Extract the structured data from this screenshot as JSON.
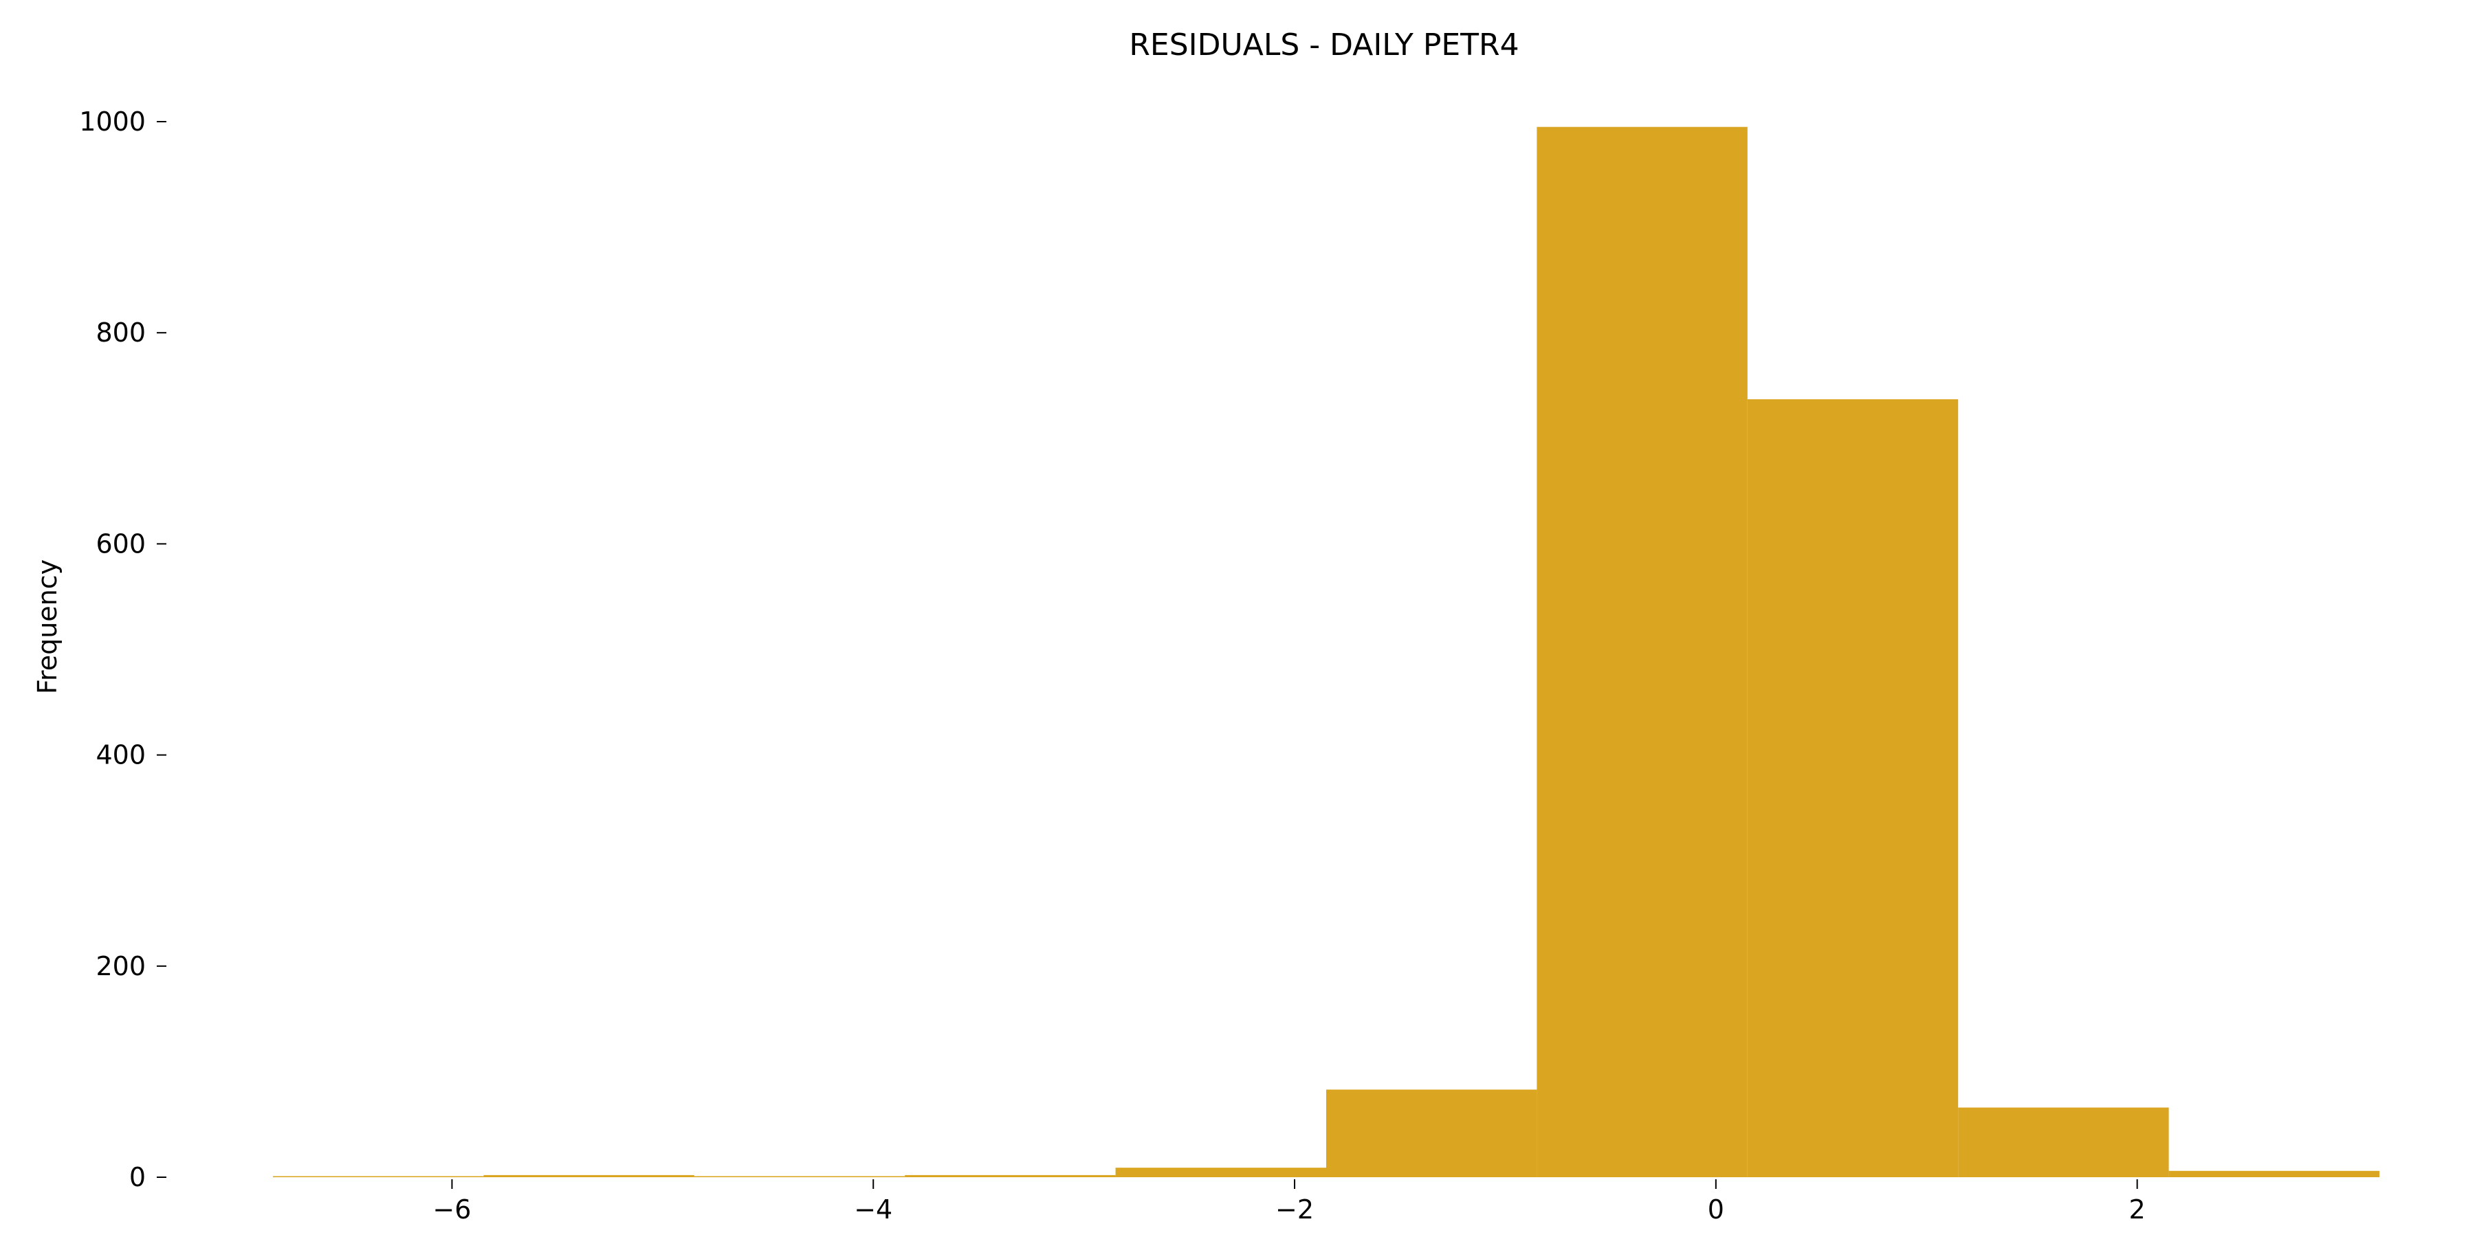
{
  "chart_data": {
    "type": "bar",
    "subtype": "histogram",
    "title": "RESIDUALS - DAILY PETR4",
    "xlabel": "",
    "ylabel": "Frequency",
    "bar_color": "#DAA520",
    "bins": [
      {
        "x0": -6.85,
        "x1": -5.85,
        "count": 1
      },
      {
        "x0": -5.85,
        "x1": -4.85,
        "count": 2
      },
      {
        "x0": -4.85,
        "x1": -3.85,
        "count": 1
      },
      {
        "x0": -3.85,
        "x1": -2.85,
        "count": 2
      },
      {
        "x0": -2.85,
        "x1": -1.85,
        "count": 9
      },
      {
        "x0": -1.85,
        "x1": -0.85,
        "count": 83
      },
      {
        "x0": -0.85,
        "x1": 0.15,
        "count": 995
      },
      {
        "x0": 0.15,
        "x1": 1.15,
        "count": 737
      },
      {
        "x0": 1.15,
        "x1": 2.15,
        "count": 66
      },
      {
        "x0": 2.15,
        "x1": 3.15,
        "count": 6
      }
    ],
    "xlim": [
      -6.85,
      3.15
    ],
    "ylim": [
      0,
      1000
    ],
    "xticks": [
      -6,
      -4,
      -2,
      0,
      2
    ],
    "xtick_labels": [
      "−6",
      "−4",
      "−2",
      "0",
      "2"
    ],
    "yticks": [
      0,
      200,
      400,
      600,
      800,
      1000
    ],
    "ytick_labels": [
      "0",
      "200",
      "400",
      "600",
      "800",
      "1000"
    ],
    "grid": false,
    "legend": "none"
  }
}
